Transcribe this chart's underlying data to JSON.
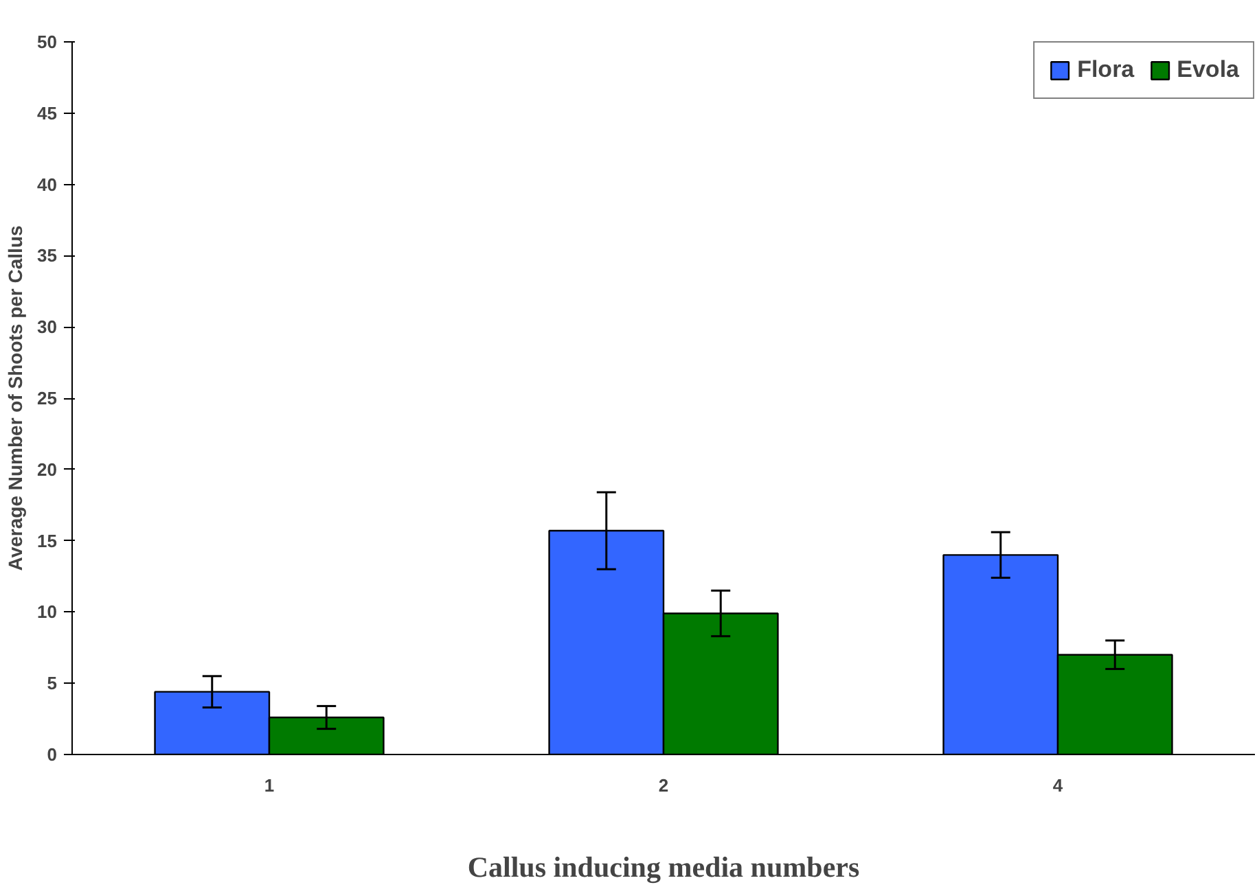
{
  "chart_data": {
    "type": "bar",
    "xlabel": "Callus inducing media numbers",
    "ylabel": "Average Number of Shoots per Callus",
    "categories": [
      "1",
      "2",
      "4"
    ],
    "series": [
      {
        "name": "Flora",
        "color": "#3366ff",
        "values": [
          4.4,
          15.7,
          14.0
        ],
        "errors": [
          1.1,
          2.7,
          1.6
        ]
      },
      {
        "name": "Evola",
        "color": "#007a00",
        "values": [
          2.6,
          9.9,
          7.0
        ],
        "errors": [
          0.8,
          1.6,
          1.0
        ]
      }
    ],
    "ylim": [
      0,
      50
    ],
    "yticks": [
      0,
      5,
      10,
      15,
      20,
      25,
      30,
      35,
      40,
      45,
      50
    ],
    "grid": false,
    "legend": "top right"
  }
}
